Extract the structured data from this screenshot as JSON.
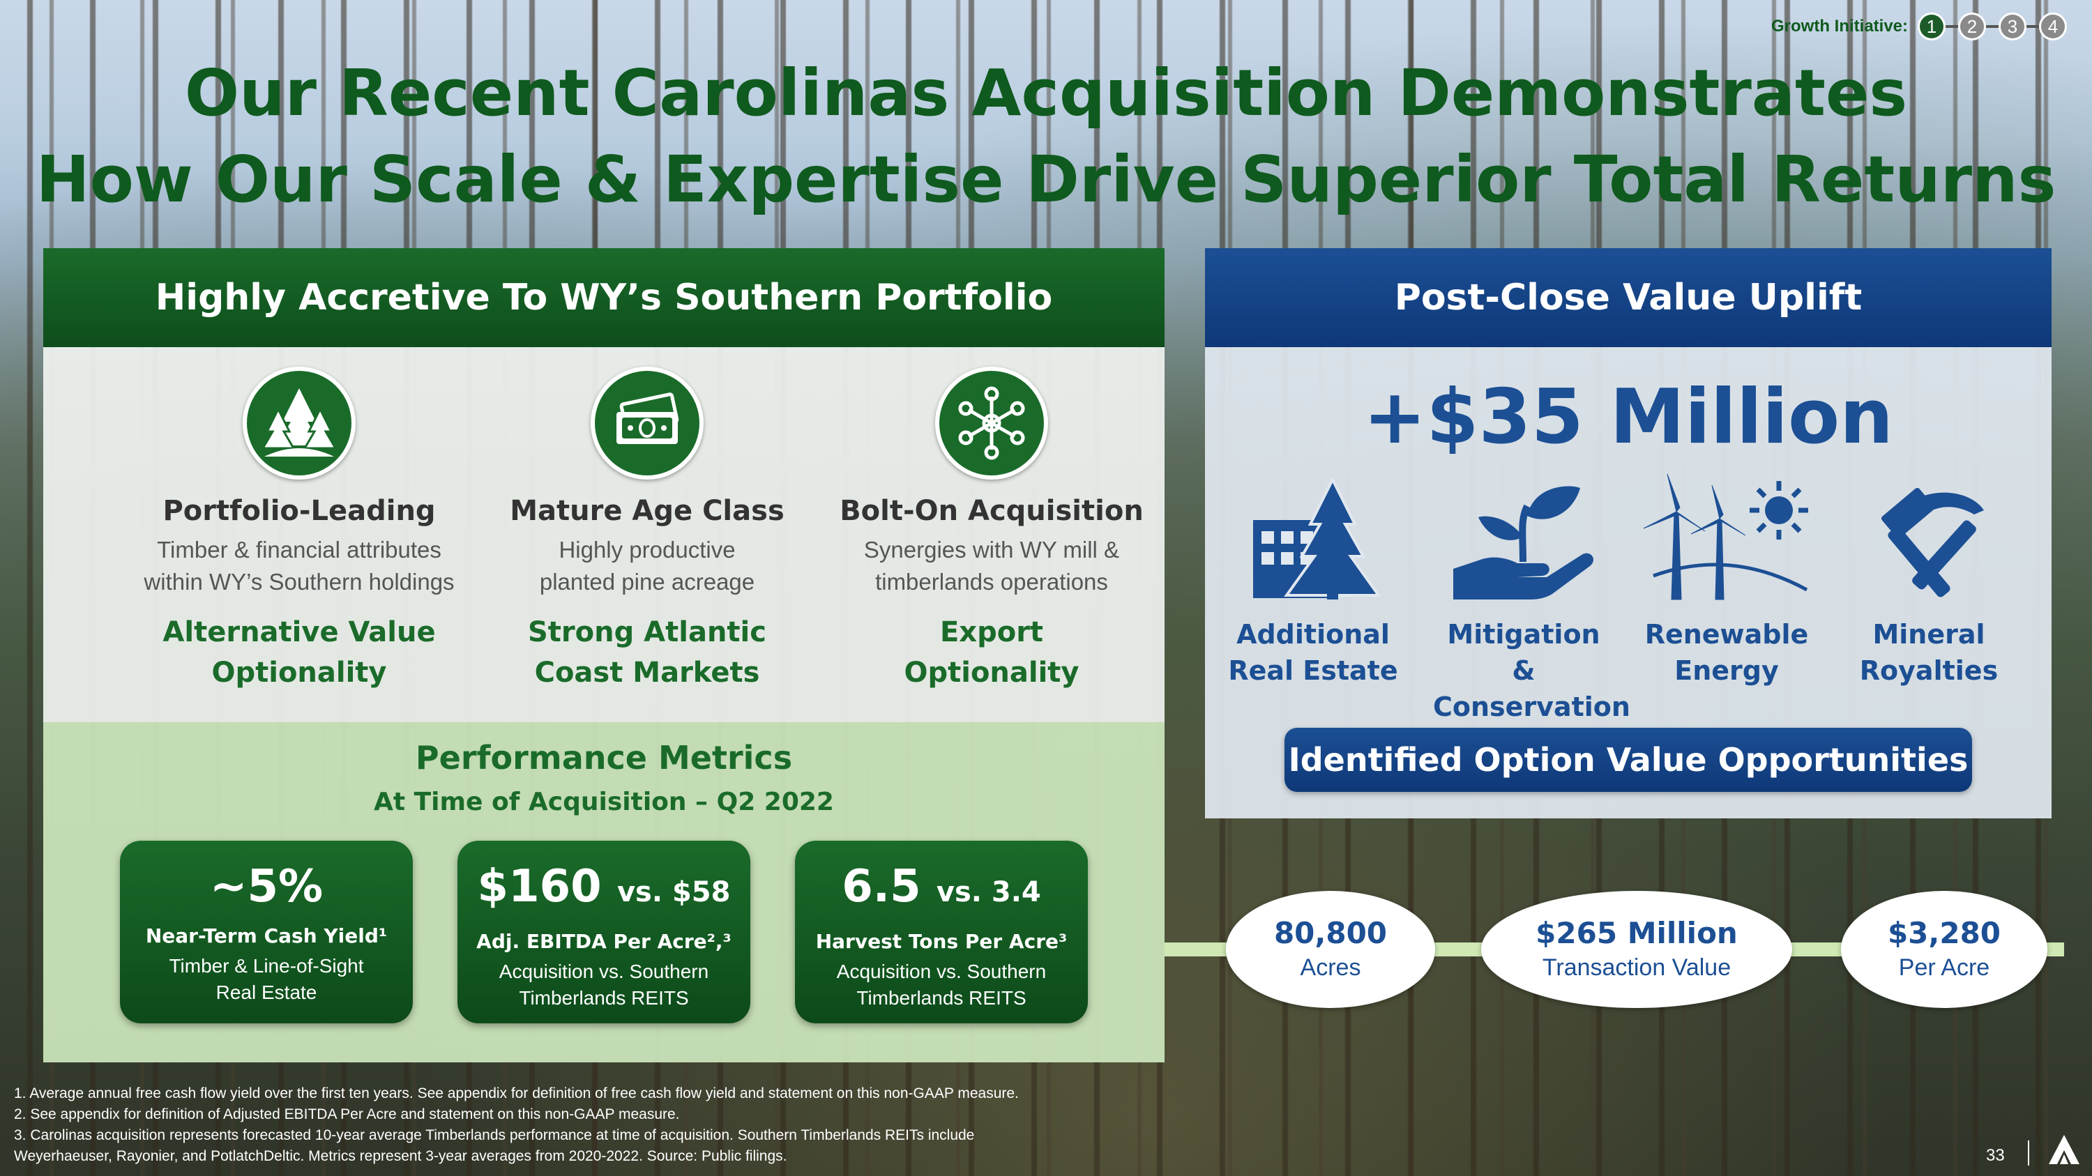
{
  "growth": {
    "label": "Growth Initiative:",
    "steps": [
      "1",
      "2",
      "3",
      "4"
    ],
    "active": "1"
  },
  "title": {
    "line1": "Our Recent Carolinas Acquisition Demonstrates",
    "line2": "How Our Scale & Expertise Drive Superior Total Returns"
  },
  "left": {
    "header": "Highly Accretive To WY’s Southern Portfolio",
    "features": [
      {
        "icon": "forest-icon",
        "title": "Portfolio-Leading",
        "desc1": "Timber & financial attributes",
        "desc2": "within WY’s Southern holdings",
        "opt1": "Alternative Value",
        "opt2": "Optionality"
      },
      {
        "icon": "money-icon",
        "title": "Mature Age Class",
        "desc1": "Highly productive",
        "desc2": "planted pine acreage",
        "opt1": "Strong Atlantic",
        "opt2": "Coast Markets"
      },
      {
        "icon": "network-icon",
        "title": "Bolt-On Acquisition",
        "desc1": "Synergies with WY mill &",
        "desc2": "timberlands operations",
        "opt1": "Export",
        "opt2": "Optionality"
      }
    ],
    "performance": {
      "title": "Performance Metrics",
      "subtitle": "At Time of Acquisition – Q2 2022",
      "metrics": [
        {
          "value": "~5%",
          "compare": "",
          "label": "Near-Term Cash Yield¹",
          "desc1": "Timber & Line-of-Sight",
          "desc2": "Real Estate"
        },
        {
          "value": "$160",
          "compare": "vs. $58",
          "label": "Adj. EBITDA Per Acre²,³",
          "desc1": "Acquisition vs. Southern",
          "desc2": "Timberlands REITS"
        },
        {
          "value": "6.5",
          "compare": "vs. 3.4",
          "label": "Harvest Tons Per Acre³",
          "desc1": "Acquisition vs. Southern",
          "desc2": "Timberlands REITS"
        }
      ]
    }
  },
  "right": {
    "header": "Post-Close Value Uplift",
    "uplift": "+$35 Million",
    "options": [
      {
        "icon": "building-tree-icon",
        "line1": "Additional",
        "line2": "Real Estate"
      },
      {
        "icon": "hand-plant-icon",
        "line1": "Mitigation &",
        "line2": "Conservation"
      },
      {
        "icon": "wind-sun-icon",
        "line1": "Renewable",
        "line2": "Energy"
      },
      {
        "icon": "hammer-pick-icon",
        "line1": "Mineral",
        "line2": "Royalties"
      }
    ],
    "button": "Identified Option Value Opportunities"
  },
  "stats": [
    {
      "value": "80,800",
      "label": "Acres"
    },
    {
      "value": "$265 Million",
      "label": "Transaction Value"
    },
    {
      "value": "$3,280",
      "label": "Per Acre"
    }
  ],
  "footnotes": [
    "1. Average annual free cash flow yield over the first ten years. See appendix for definition of free cash flow yield and statement on this non-GAAP measure.",
    "2. See appendix for definition of Adjusted EBITDA Per Acre and statement on this non-GAAP measure.",
    "3. Carolinas acquisition represents forecasted 10-year average Timberlands performance at time of acquisition. Southern Timberlands REITs include",
    "Weyerhaeuser, Rayonier, and PotlatchDeltic. Metrics represent 3-year averages from 2020-2022. Source: Public filings."
  ],
  "page_number": "33",
  "colors": {
    "green": "#1a6b2a",
    "blue": "#1c4f94",
    "title_green": "#0f5a1e"
  }
}
